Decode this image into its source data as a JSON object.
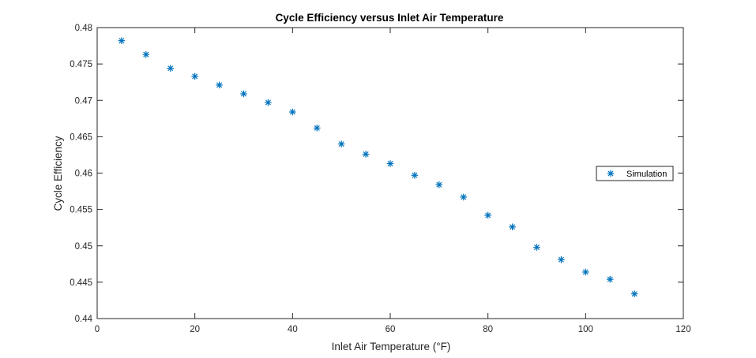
{
  "chart_data": {
    "type": "scatter",
    "title": "Cycle Efficiency versus Inlet Air Temperature",
    "xlabel": "Inlet Air Temperature (°F)",
    "ylabel": "Cycle Efficiency",
    "xlim": [
      0,
      120
    ],
    "ylim": [
      0.44,
      0.48
    ],
    "xticks": [
      "0",
      "20",
      "40",
      "60",
      "80",
      "100",
      "120"
    ],
    "yticks": [
      "0.44",
      "0.445",
      "0.45",
      "0.455",
      "0.46",
      "0.465",
      "0.47",
      "0.475",
      "0.48"
    ],
    "grid": false,
    "legend_position": "right",
    "marker": "asterisk",
    "marker_color": "#0072BD",
    "series": [
      {
        "name": "Simulation",
        "x": [
          5,
          10,
          15,
          20,
          25,
          30,
          35,
          40,
          45,
          50,
          55,
          60,
          65,
          70,
          75,
          80,
          85,
          90,
          95,
          100,
          105,
          110
        ],
        "y": [
          0.4782,
          0.4763,
          0.4744,
          0.4733,
          0.4721,
          0.4709,
          0.4697,
          0.4684,
          0.4662,
          0.464,
          0.4626,
          0.4613,
          0.4597,
          0.4584,
          0.4567,
          0.4542,
          0.4526,
          0.4498,
          0.4481,
          0.4464,
          0.4454,
          0.4434
        ]
      }
    ]
  }
}
